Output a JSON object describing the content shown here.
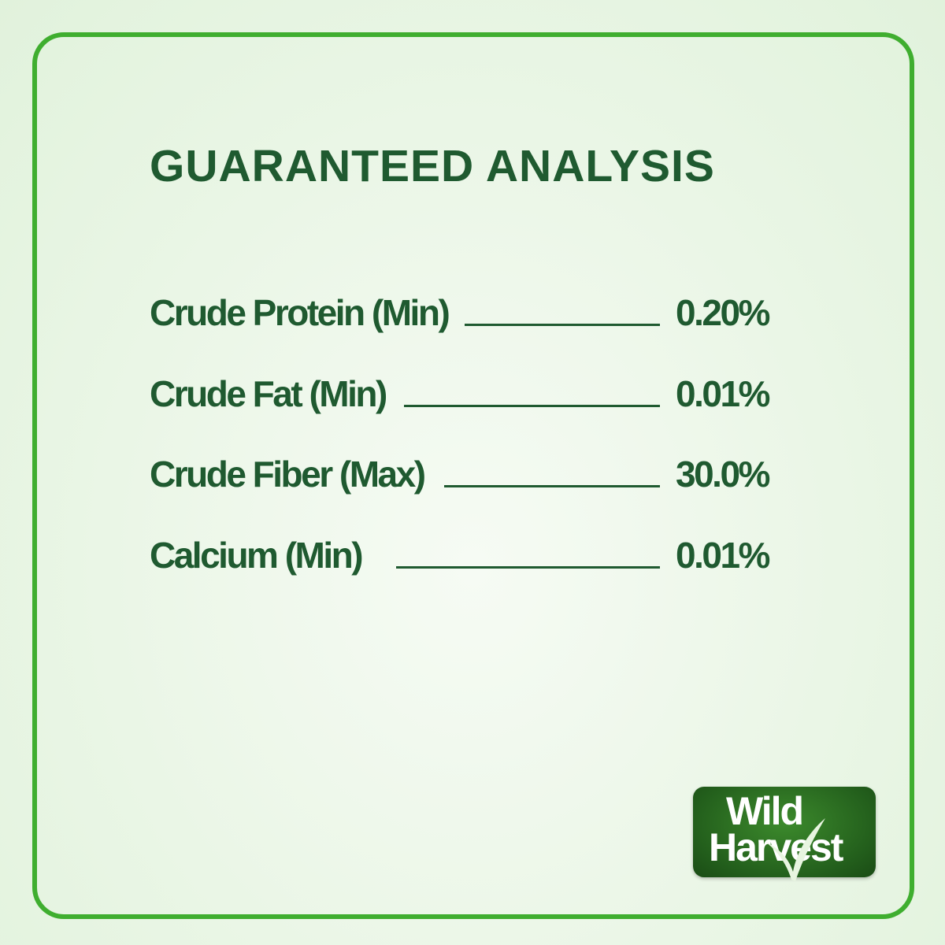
{
  "title": "GUARANTEED ANALYSIS",
  "rows": [
    {
      "label": "Crude Protein (Min)",
      "value": "0.20%"
    },
    {
      "label": "Crude Fat (Min)",
      "value": "0.01%"
    },
    {
      "label": "Crude Fiber (Max)",
      "value": "30.0%"
    },
    {
      "label": "Calcium (Min)",
      "value": "0.01%"
    }
  ],
  "logo": {
    "line1": "Wild",
    "line2": "Harvest"
  },
  "colors": {
    "text": "#1f5a30",
    "border": "#3fae2f",
    "logo_bg": "#235f1c"
  }
}
